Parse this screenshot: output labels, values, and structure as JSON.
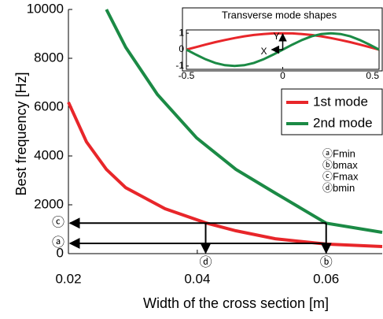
{
  "chart_data": {
    "type": "line",
    "xlabel": "Width of the cross section [m]",
    "ylabel": "Best frequency [Hz]",
    "xlim": [
      0.02,
      0.0687
    ],
    "ylim": [
      0,
      10000
    ],
    "xticks": [
      0.02,
      0.04,
      0.06
    ],
    "yticks": [
      0,
      2000,
      4000,
      6000,
      8000,
      10000
    ],
    "legend": "upper right",
    "series": [
      {
        "name": "1st mode",
        "color": "#e8262a",
        "x": [
          0.02,
          0.0228,
          0.0259,
          0.0289,
          0.032,
          0.035,
          0.0413,
          0.046,
          0.0521,
          0.06,
          0.0687
        ],
        "values": [
          6200,
          4580,
          3450,
          2700,
          2260,
          1840,
          1260,
          935,
          610,
          390,
          290
        ]
      },
      {
        "name": "2nd mode",
        "color": "#1b8a45",
        "x": [
          0.0259,
          0.0289,
          0.0338,
          0.0399,
          0.046,
          0.0521,
          0.06,
          0.0687
        ],
        "values": [
          10000,
          8450,
          6520,
          4740,
          3450,
          2480,
          1250,
          870
        ]
      }
    ],
    "annotations": [
      {
        "text": "ⓒ",
        "axis": "y",
        "value": 1250
      },
      {
        "text": "ⓐ",
        "axis": "y",
        "value": 420
      },
      {
        "text": "ⓓ",
        "axis": "x",
        "value": 0.0413
      },
      {
        "text": "ⓑ",
        "axis": "x",
        "value": 0.06
      }
    ],
    "key": [
      "ⓐFmin",
      "ⓑbmax",
      "ⓒFmax",
      "ⓓbmin"
    ],
    "inset": {
      "title": "Transverse mode shapes",
      "xlim": [
        -0.5,
        0.5
      ],
      "ylim": [
        -1.2,
        1.2
      ],
      "xticks": [
        -0.5,
        0,
        0.5
      ],
      "yticks": [
        -1,
        0,
        1
      ],
      "labels": [
        "Y",
        "X"
      ],
      "x": [
        -0.5,
        -0.45,
        -0.4,
        -0.35,
        -0.3,
        -0.25,
        -0.2,
        -0.15,
        -0.1,
        -0.05,
        0,
        0.05,
        0.1,
        0.15,
        0.2,
        0.25,
        0.3,
        0.35,
        0.4,
        0.45,
        0.5
      ],
      "series": [
        {
          "color": "#e8262a",
          "values": [
            0,
            0.156,
            0.309,
            0.454,
            0.588,
            0.707,
            0.809,
            0.891,
            0.951,
            0.988,
            1,
            0.988,
            0.951,
            0.891,
            0.809,
            0.707,
            0.588,
            0.454,
            0.309,
            0.156,
            0
          ]
        },
        {
          "color": "#1b8a45",
          "values": [
            0,
            -0.309,
            -0.588,
            -0.809,
            -0.951,
            -1,
            -0.951,
            -0.809,
            -0.588,
            -0.309,
            0,
            0.309,
            0.588,
            0.809,
            0.951,
            1,
            0.951,
            0.809,
            0.588,
            0.309,
            0
          ]
        }
      ]
    }
  }
}
